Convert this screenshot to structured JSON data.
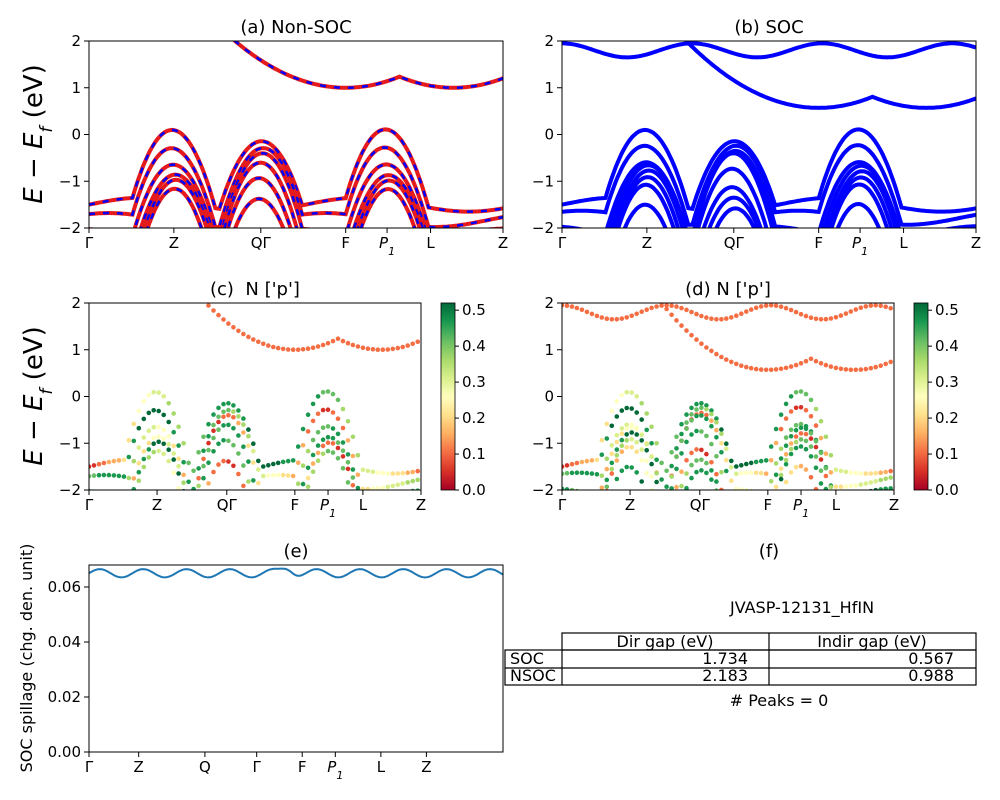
{
  "figure": {
    "ylabel_bands": "E − E_f (eV)",
    "ylabel_spillage": "SOC spillage (chg. den. unit)"
  },
  "chart_data": [
    {
      "id": "a",
      "type": "line",
      "title": "(a) Non-SOC",
      "ylim": [
        -2,
        2
      ],
      "yticks": [
        "2",
        "1",
        "0",
        "−1",
        "−2"
      ],
      "xticks": [
        "Γ",
        "Z",
        "QΓ",
        "F",
        "P_1",
        "L",
        "Z"
      ],
      "series_colors": [
        "#e41a1c",
        "#0000ff"
      ],
      "valence_max_eV": 0.0,
      "conduction_min_eV": 1.0
    },
    {
      "id": "b",
      "type": "line",
      "title": "(b) SOC",
      "ylim": [
        -2,
        2
      ],
      "yticks": [
        "2",
        "1",
        "0",
        "−1",
        "−2"
      ],
      "xticks": [
        "Γ",
        "Z",
        "QΓ",
        "F",
        "P_1",
        "L",
        "Z"
      ],
      "series_colors": [
        "#0000ff"
      ],
      "valence_max_eV": 0.0,
      "conduction_min_eV": 0.57
    },
    {
      "id": "c",
      "type": "scatter",
      "title": "(c)  N ['p']",
      "ylim": [
        -2,
        2
      ],
      "yticks": [
        "2",
        "1",
        "0",
        "−1",
        "−2"
      ],
      "xticks": [
        "Γ",
        "Z",
        "QΓ",
        "F",
        "P_1",
        "L",
        "Z"
      ],
      "colorbar": {
        "range": [
          0.0,
          0.52
        ],
        "ticks": [
          "0.5",
          "0.4",
          "0.3",
          "0.2",
          "0.1",
          "0.0"
        ],
        "colormap": "RdYlGn"
      }
    },
    {
      "id": "d",
      "type": "scatter",
      "title": "(d) N ['p']",
      "ylim": [
        -2,
        2
      ],
      "yticks": [
        "2",
        "1",
        "0",
        "−1",
        "−2"
      ],
      "xticks": [
        "Γ",
        "Z",
        "QΓ",
        "F",
        "P_1",
        "L",
        "Z"
      ],
      "colorbar": {
        "range": [
          0.0,
          0.52
        ],
        "ticks": [
          "0.5",
          "0.4",
          "0.3",
          "0.2",
          "0.1",
          "0.0"
        ],
        "colormap": "RdYlGn"
      }
    },
    {
      "id": "e",
      "type": "line",
      "title": "(e)",
      "ylabel": "SOC spillage (chg. den. unit)",
      "ylim": [
        0,
        0.068
      ],
      "yticks": [
        "0.06",
        "0.04",
        "0.02",
        "0.00"
      ],
      "xticks": [
        "Γ",
        "Z",
        "Q",
        "Γ",
        "F",
        "P_1",
        "L",
        "Z"
      ],
      "series_color": "#1f77b4",
      "baseline": 0.065
    }
  ],
  "info_panel": {
    "title": "(f)",
    "material": "JVASP-12131_HfIN",
    "table": {
      "headers": [
        "",
        "Dir gap (eV)",
        "Indir gap (eV)"
      ],
      "rows": [
        [
          "SOC",
          "1.734",
          "0.567"
        ],
        [
          "NSOC",
          "2.183",
          "0.988"
        ]
      ]
    },
    "peaks": "# Peaks = 0"
  }
}
